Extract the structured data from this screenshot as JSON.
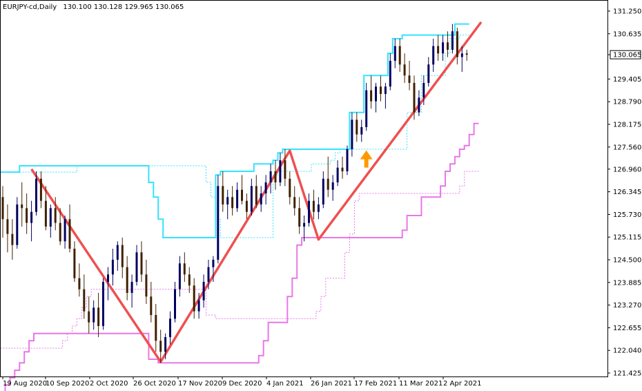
{
  "header": {
    "symbol": "EURJPY-cd,Daily",
    "ohlc": "130.100 130.128 129.965 130.065"
  },
  "chart_data": {
    "type": "candlestick",
    "title": "EURJPY-cd,Daily",
    "current_price": "130.065",
    "price_ticks": [
      "131.250",
      "130.635",
      "130.065",
      "129.405",
      "128.790",
      "128.175",
      "127.560",
      "126.960",
      "126.345",
      "125.730",
      "125.115",
      "124.500",
      "123.885",
      "123.270",
      "122.655",
      "122.040",
      "121.425"
    ],
    "date_ticks": [
      "19 Aug 2020",
      "10 Sep 2020",
      "2 Oct 2020",
      "26 Oct 2020",
      "17 Nov 2020",
      "9 Dec 2020",
      "4 Jan 2021",
      "26 Jan 2021",
      "17 Feb 2021",
      "11 Mar 2021",
      "2 Apr 2021"
    ],
    "ylim": [
      121.425,
      131.25
    ],
    "candles": [
      {
        "o": 126.2,
        "h": 126.5,
        "l": 125.1,
        "c": 125.6
      },
      {
        "o": 125.6,
        "h": 126.0,
        "l": 124.7,
        "c": 125.2
      },
      {
        "o": 125.2,
        "h": 125.6,
        "l": 124.5,
        "c": 124.9
      },
      {
        "o": 124.9,
        "h": 126.2,
        "l": 124.8,
        "c": 126.0
      },
      {
        "o": 126.0,
        "h": 126.6,
        "l": 125.4,
        "c": 125.9
      },
      {
        "o": 125.9,
        "h": 126.3,
        "l": 125.2,
        "c": 125.5
      },
      {
        "o": 125.5,
        "h": 126.1,
        "l": 125.0,
        "c": 125.8
      },
      {
        "o": 125.8,
        "h": 126.9,
        "l": 125.7,
        "c": 126.7
      },
      {
        "o": 126.7,
        "h": 126.9,
        "l": 125.9,
        "c": 126.1
      },
      {
        "o": 126.1,
        "h": 126.5,
        "l": 125.3,
        "c": 125.4
      },
      {
        "o": 125.4,
        "h": 126.0,
        "l": 125.1,
        "c": 125.9
      },
      {
        "o": 125.9,
        "h": 126.2,
        "l": 125.3,
        "c": 125.5
      },
      {
        "o": 125.5,
        "h": 125.9,
        "l": 124.9,
        "c": 125.0
      },
      {
        "o": 125.0,
        "h": 125.7,
        "l": 124.8,
        "c": 125.6
      },
      {
        "o": 125.6,
        "h": 126.0,
        "l": 124.7,
        "c": 124.8
      },
      {
        "o": 124.8,
        "h": 125.0,
        "l": 123.9,
        "c": 124.0
      },
      {
        "o": 124.0,
        "h": 124.4,
        "l": 123.5,
        "c": 123.7
      },
      {
        "o": 123.7,
        "h": 124.1,
        "l": 122.9,
        "c": 123.1
      },
      {
        "o": 123.1,
        "h": 123.5,
        "l": 122.5,
        "c": 122.8
      },
      {
        "o": 122.8,
        "h": 123.4,
        "l": 122.6,
        "c": 123.2
      },
      {
        "o": 123.2,
        "h": 123.6,
        "l": 122.4,
        "c": 122.7
      },
      {
        "o": 122.7,
        "h": 124.0,
        "l": 122.6,
        "c": 123.9
      },
      {
        "o": 123.9,
        "h": 124.3,
        "l": 123.4,
        "c": 124.1
      },
      {
        "o": 124.1,
        "h": 124.8,
        "l": 123.8,
        "c": 124.5
      },
      {
        "o": 124.5,
        "h": 125.0,
        "l": 124.2,
        "c": 124.9
      },
      {
        "o": 124.9,
        "h": 125.1,
        "l": 124.0,
        "c": 124.3
      },
      {
        "o": 124.3,
        "h": 124.6,
        "l": 123.4,
        "c": 123.6
      },
      {
        "o": 123.6,
        "h": 124.1,
        "l": 123.2,
        "c": 123.9
      },
      {
        "o": 123.9,
        "h": 124.9,
        "l": 123.8,
        "c": 124.7
      },
      {
        "o": 124.7,
        "h": 125.0,
        "l": 123.9,
        "c": 124.1
      },
      {
        "o": 124.1,
        "h": 124.5,
        "l": 123.3,
        "c": 123.5
      },
      {
        "o": 123.5,
        "h": 123.9,
        "l": 122.8,
        "c": 123.0
      },
      {
        "o": 123.0,
        "h": 123.3,
        "l": 122.0,
        "c": 122.3
      },
      {
        "o": 122.3,
        "h": 122.6,
        "l": 121.7,
        "c": 122.0
      },
      {
        "o": 122.0,
        "h": 122.5,
        "l": 121.8,
        "c": 122.4
      },
      {
        "o": 122.4,
        "h": 123.1,
        "l": 122.2,
        "c": 122.9
      },
      {
        "o": 122.9,
        "h": 123.9,
        "l": 122.8,
        "c": 123.7
      },
      {
        "o": 123.7,
        "h": 124.6,
        "l": 123.5,
        "c": 124.4
      },
      {
        "o": 124.4,
        "h": 124.7,
        "l": 123.9,
        "c": 124.1
      },
      {
        "o": 124.1,
        "h": 124.3,
        "l": 123.6,
        "c": 123.8
      },
      {
        "o": 123.8,
        "h": 124.0,
        "l": 122.9,
        "c": 123.1
      },
      {
        "o": 123.1,
        "h": 123.6,
        "l": 122.9,
        "c": 123.4
      },
      {
        "o": 123.4,
        "h": 124.1,
        "l": 123.2,
        "c": 123.9
      },
      {
        "o": 123.9,
        "h": 124.5,
        "l": 123.7,
        "c": 124.3
      },
      {
        "o": 124.3,
        "h": 124.6,
        "l": 123.9,
        "c": 124.5
      },
      {
        "o": 124.5,
        "h": 126.8,
        "l": 124.4,
        "c": 126.5
      },
      {
        "o": 126.5,
        "h": 126.9,
        "l": 125.8,
        "c": 126.0
      },
      {
        "o": 126.0,
        "h": 126.4,
        "l": 125.6,
        "c": 126.2
      },
      {
        "o": 126.2,
        "h": 126.5,
        "l": 125.7,
        "c": 125.9
      },
      {
        "o": 125.9,
        "h": 126.6,
        "l": 125.8,
        "c": 126.4
      },
      {
        "o": 126.4,
        "h": 126.8,
        "l": 126.0,
        "c": 126.1
      },
      {
        "o": 126.1,
        "h": 126.3,
        "l": 125.6,
        "c": 125.8
      },
      {
        "o": 125.8,
        "h": 126.7,
        "l": 125.7,
        "c": 126.5
      },
      {
        "o": 126.5,
        "h": 126.8,
        "l": 125.9,
        "c": 126.0
      },
      {
        "o": 126.0,
        "h": 126.5,
        "l": 125.8,
        "c": 126.3
      },
      {
        "o": 126.3,
        "h": 126.8,
        "l": 126.0,
        "c": 126.6
      },
      {
        "o": 126.6,
        "h": 127.1,
        "l": 126.3,
        "c": 126.9
      },
      {
        "o": 126.9,
        "h": 127.2,
        "l": 126.4,
        "c": 126.6
      },
      {
        "o": 126.6,
        "h": 127.4,
        "l": 126.5,
        "c": 127.2
      },
      {
        "o": 127.2,
        "h": 127.5,
        "l": 126.5,
        "c": 126.7
      },
      {
        "o": 126.7,
        "h": 126.9,
        "l": 126.0,
        "c": 126.2
      },
      {
        "o": 126.2,
        "h": 126.5,
        "l": 125.7,
        "c": 125.9
      },
      {
        "o": 125.9,
        "h": 126.2,
        "l": 125.2,
        "c": 125.4
      },
      {
        "o": 125.4,
        "h": 125.7,
        "l": 125.0,
        "c": 125.5
      },
      {
        "o": 125.5,
        "h": 126.3,
        "l": 125.4,
        "c": 126.1
      },
      {
        "o": 126.1,
        "h": 126.4,
        "l": 125.6,
        "c": 125.8
      },
      {
        "o": 125.8,
        "h": 126.2,
        "l": 125.6,
        "c": 126.0
      },
      {
        "o": 126.0,
        "h": 126.9,
        "l": 125.9,
        "c": 126.7
      },
      {
        "o": 126.7,
        "h": 127.3,
        "l": 126.2,
        "c": 126.4
      },
      {
        "o": 126.4,
        "h": 126.8,
        "l": 126.1,
        "c": 126.6
      },
      {
        "o": 126.6,
        "h": 127.2,
        "l": 126.5,
        "c": 127.0
      },
      {
        "o": 127.0,
        "h": 127.3,
        "l": 126.7,
        "c": 126.9
      },
      {
        "o": 126.9,
        "h": 127.6,
        "l": 126.8,
        "c": 127.5
      },
      {
        "o": 127.5,
        "h": 128.5,
        "l": 127.3,
        "c": 128.3
      },
      {
        "o": 128.3,
        "h": 128.5,
        "l": 127.7,
        "c": 127.9
      },
      {
        "o": 127.9,
        "h": 128.3,
        "l": 127.7,
        "c": 128.1
      },
      {
        "o": 128.1,
        "h": 129.3,
        "l": 128.0,
        "c": 129.1
      },
      {
        "o": 129.1,
        "h": 129.5,
        "l": 128.6,
        "c": 128.8
      },
      {
        "o": 128.8,
        "h": 129.3,
        "l": 128.5,
        "c": 129.2
      },
      {
        "o": 129.2,
        "h": 129.5,
        "l": 128.8,
        "c": 129.0
      },
      {
        "o": 129.0,
        "h": 129.3,
        "l": 128.6,
        "c": 129.2
      },
      {
        "o": 129.2,
        "h": 130.1,
        "l": 129.1,
        "c": 129.9
      },
      {
        "o": 129.9,
        "h": 130.5,
        "l": 129.7,
        "c": 130.3
      },
      {
        "o": 130.3,
        "h": 130.5,
        "l": 129.6,
        "c": 129.8
      },
      {
        "o": 129.8,
        "h": 130.1,
        "l": 129.3,
        "c": 129.5
      },
      {
        "o": 129.5,
        "h": 129.9,
        "l": 129.1,
        "c": 129.3
      },
      {
        "o": 129.3,
        "h": 129.5,
        "l": 128.3,
        "c": 128.5
      },
      {
        "o": 128.5,
        "h": 129.1,
        "l": 128.4,
        "c": 128.9
      },
      {
        "o": 128.9,
        "h": 129.5,
        "l": 128.7,
        "c": 129.3
      },
      {
        "o": 129.3,
        "h": 130.0,
        "l": 129.2,
        "c": 129.8
      },
      {
        "o": 129.8,
        "h": 130.5,
        "l": 129.6,
        "c": 130.3
      },
      {
        "o": 130.3,
        "h": 130.6,
        "l": 129.9,
        "c": 130.1
      },
      {
        "o": 130.1,
        "h": 130.6,
        "l": 129.9,
        "c": 130.4
      },
      {
        "o": 130.4,
        "h": 130.7,
        "l": 130.0,
        "c": 130.2
      },
      {
        "o": 130.2,
        "h": 130.9,
        "l": 130.1,
        "c": 130.7
      },
      {
        "o": 130.7,
        "h": 130.8,
        "l": 129.8,
        "c": 130.0
      },
      {
        "o": 130.0,
        "h": 130.3,
        "l": 129.6,
        "c": 130.1
      },
      {
        "o": 130.1,
        "h": 130.2,
        "l": 129.9,
        "c": 130.065
      }
    ],
    "upper_channel": [
      126.88,
      126.88,
      126.88,
      126.88,
      127.05,
      127.05,
      127.05,
      127.05,
      127.05,
      127.05,
      127.05,
      127.05,
      127.05,
      127.05,
      127.05,
      127.05,
      127.05,
      127.05,
      127.05,
      127.05,
      127.05,
      127.05,
      127.05,
      127.05,
      127.05,
      127.05,
      127.05,
      127.05,
      127.05,
      127.05,
      127.05,
      126.6,
      126.2,
      125.6,
      125.1,
      125.1,
      125.1,
      125.1,
      125.1,
      125.1,
      125.1,
      125.1,
      125.1,
      125.1,
      125.1,
      126.8,
      126.9,
      126.9,
      126.9,
      126.9,
      126.9,
      126.9,
      126.9,
      127.1,
      127.1,
      127.1,
      127.1,
      127.2,
      127.4,
      127.5,
      127.5,
      127.5,
      127.5,
      127.5,
      127.5,
      127.5,
      127.5,
      127.5,
      127.5,
      127.5,
      127.5,
      127.5,
      127.5,
      128.5,
      128.5,
      128.5,
      129.5,
      129.5,
      129.5,
      129.5,
      129.5,
      130.1,
      130.5,
      130.5,
      130.6,
      130.6,
      130.6,
      130.6,
      130.6,
      130.6,
      130.6,
      130.6,
      130.6,
      130.6,
      130.6,
      130.9,
      130.9,
      130.9
    ],
    "lower_channel": [
      120.9,
      121.1,
      121.3,
      121.5,
      121.7,
      122.0,
      122.3,
      122.5,
      122.5,
      122.5,
      122.5,
      122.5,
      122.5,
      122.5,
      122.5,
      122.5,
      122.5,
      122.5,
      122.5,
      122.5,
      122.5,
      122.5,
      122.5,
      122.5,
      122.5,
      122.5,
      122.5,
      122.5,
      122.5,
      122.5,
      122.5,
      121.8,
      121.8,
      121.7,
      121.7,
      121.7,
      121.7,
      121.7,
      121.7,
      121.7,
      121.7,
      121.7,
      121.7,
      121.7,
      121.7,
      121.7,
      121.7,
      121.7,
      121.7,
      121.7,
      121.7,
      121.7,
      121.7,
      121.7,
      121.9,
      122.3,
      122.8,
      122.8,
      122.8,
      122.8,
      123.5,
      124.0,
      124.9,
      125.1,
      125.1,
      125.1,
      125.1,
      125.1,
      125.1,
      125.1,
      125.1,
      125.1,
      125.1,
      125.1,
      125.1,
      125.1,
      125.1,
      125.1,
      125.1,
      125.1,
      125.1,
      125.1,
      125.1,
      125.1,
      125.3,
      125.7,
      125.7,
      125.7,
      126.2,
      126.2,
      126.2,
      126.2,
      126.5,
      126.9,
      127.1,
      127.3,
      127.5,
      127.6,
      127.9,
      128.2
    ],
    "zigzag": [
      [
        6,
        126.96
      ],
      [
        33,
        121.73
      ],
      [
        60,
        127.46
      ],
      [
        66,
        125.05
      ],
      [
        100,
        130.95
      ]
    ],
    "signal_arrow": {
      "index": 76,
      "price": 127.3,
      "color": "#ff9900"
    },
    "colors": {
      "up": "#000060",
      "down": "#402000",
      "upper": "#33e3ff",
      "lower": "#e877e8",
      "zigzag": "#ee5050",
      "grid": "#cfcfcf"
    }
  }
}
